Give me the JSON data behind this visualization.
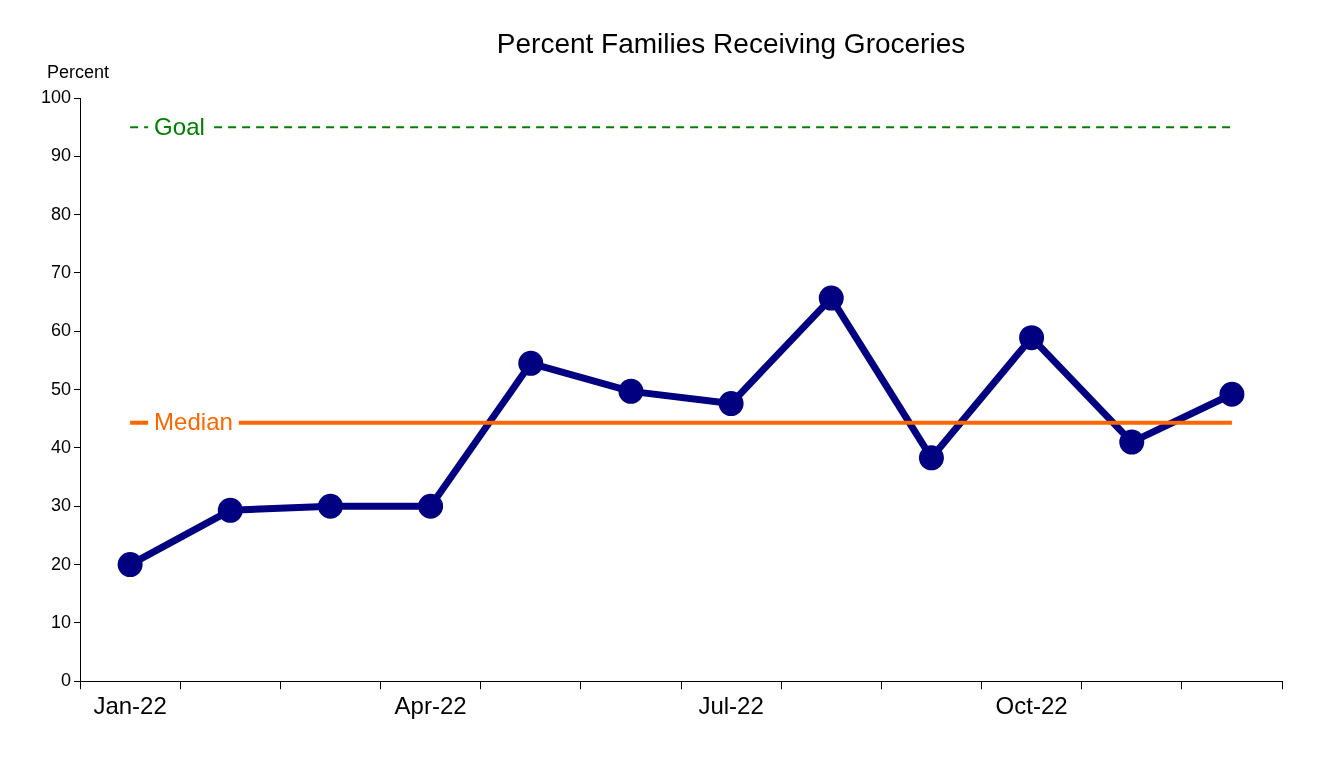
{
  "chart_data": {
    "type": "line",
    "title": "Percent Families Receiving Groceries",
    "ylabel": "Percent",
    "categories": [
      "Jan-22",
      null,
      null,
      "Apr-22",
      null,
      null,
      "Jul-22",
      null,
      null,
      "Oct-22",
      null,
      null
    ],
    "series": [
      {
        "color": "#000080",
        "values": [
          20,
          29.3,
          30,
          30,
          54.5,
          49.7,
          47.6,
          65.7,
          38.3,
          58.9,
          41,
          49.2
        ]
      }
    ],
    "ylim": [
      0,
      100
    ],
    "yticks": [
      0,
      10,
      20,
      30,
      40,
      50,
      60,
      70,
      80,
      90,
      100
    ],
    "ref_lines": [
      {
        "axis": "y",
        "value": 95,
        "label": "Goal",
        "color": "#008000",
        "line_style": "dashed"
      },
      {
        "axis": "y",
        "value": 44.3,
        "label": "Median",
        "color": "#ff6600",
        "line_style": "solid"
      }
    ],
    "grid": false,
    "legend": false,
    "marker": "circle",
    "line_style": "solid"
  }
}
